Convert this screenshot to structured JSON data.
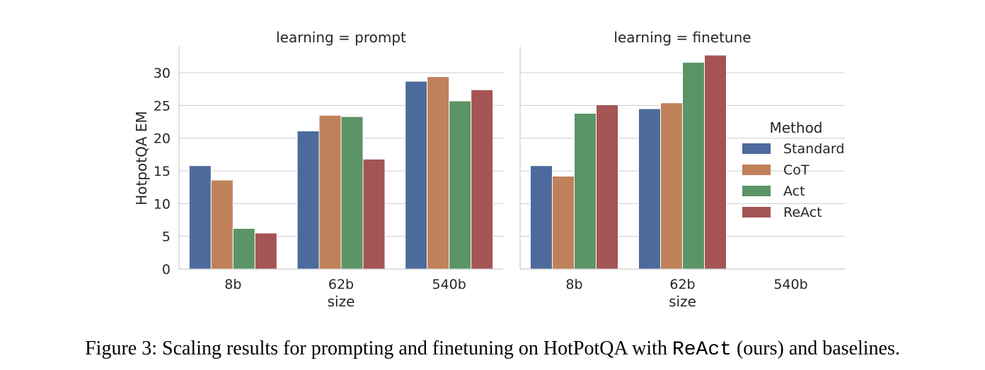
{
  "chart_data": {
    "type": "bar",
    "ylabel": "HotpotQA EM",
    "xlabel": "size",
    "ylim": [
      0,
      34
    ],
    "yticks": [
      0,
      5,
      10,
      15,
      20,
      25,
      30
    ],
    "categories": [
      "8b",
      "62b",
      "540b"
    ],
    "grid": "horizontal",
    "legend": {
      "title": "Method",
      "position": "right",
      "entries": [
        "Standard",
        "CoT",
        "Act",
        "ReAct"
      ]
    },
    "colors": {
      "Standard": "#4c6a9c",
      "CoT": "#c0815a",
      "Act": "#5b9467",
      "ReAct": "#a55454"
    },
    "panels": [
      {
        "title": "learning = prompt",
        "series": [
          {
            "name": "Standard",
            "values": [
              15.8,
              21.1,
              28.7
            ]
          },
          {
            "name": "CoT",
            "values": [
              13.6,
              23.5,
              29.4
            ]
          },
          {
            "name": "Act",
            "values": [
              6.2,
              23.3,
              25.7
            ]
          },
          {
            "name": "ReAct",
            "values": [
              5.5,
              16.8,
              27.4
            ]
          }
        ]
      },
      {
        "title": "learning = finetune",
        "series": [
          {
            "name": "Standard",
            "values": [
              15.8,
              24.5,
              null
            ]
          },
          {
            "name": "CoT",
            "values": [
              14.2,
              25.4,
              null
            ]
          },
          {
            "name": "Act",
            "values": [
              23.8,
              31.6,
              null
            ]
          },
          {
            "name": "ReAct",
            "values": [
              25.1,
              32.7,
              null
            ]
          }
        ]
      }
    ]
  },
  "caption": {
    "prefix": "Figure 3: Scaling results for prompting and finetuning on HotPotQA with ",
    "method": "ReAct",
    "suffix": " (ours) and baselines."
  }
}
